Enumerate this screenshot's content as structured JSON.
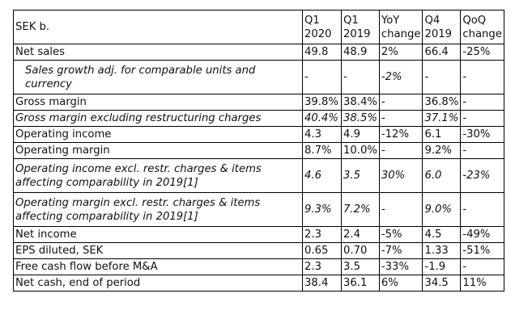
{
  "header": {
    "label": "SEK b.",
    "cols": [
      "Q1\n2020",
      "Q1\n2019",
      "YoY\nchange",
      "Q4\n2019",
      "QoQ\nchange"
    ]
  },
  "rows": [
    {
      "label": "Net sales",
      "italic": false,
      "indent": false,
      "tall": false,
      "cells": [
        "49.8",
        "48.9",
        "2%",
        "66.4",
        "-25%"
      ]
    },
    {
      "label": "Sales growth adj. for comparable units and currency",
      "italic": true,
      "indent": true,
      "tall": true,
      "cells": [
        "-",
        "-",
        "-2%",
        "-",
        "-"
      ]
    },
    {
      "label": "Gross margin",
      "italic": false,
      "indent": false,
      "tall": false,
      "cells": [
        "39.8%",
        "38.4%",
        "-",
        "36.8%",
        "-"
      ]
    },
    {
      "label": "Gross margin excluding restructuring charges",
      "italic": true,
      "indent": false,
      "tall": false,
      "cells": [
        "40.4%",
        "38.5%",
        "-",
        "37.1%",
        "-"
      ]
    },
    {
      "label": "Operating income",
      "italic": false,
      "indent": false,
      "tall": false,
      "cells": [
        "4.3",
        "4.9",
        "-12%",
        "6.1",
        "-30%"
      ]
    },
    {
      "label": "Operating margin",
      "italic": false,
      "indent": false,
      "tall": false,
      "cells": [
        "8.7%",
        "10.0%",
        "-",
        "9.2%",
        "-"
      ]
    },
    {
      "label": "Operating income excl. restr. charges & items affecting comparability in 2019[1]",
      "italic": true,
      "indent": false,
      "tall": true,
      "cells": [
        "4.6",
        "3.5",
        "30%",
        "6.0",
        "-23%"
      ]
    },
    {
      "label": "Operating margin excl. restr. charges & items affecting comparability in 2019[1]",
      "italic": true,
      "indent": false,
      "tall": true,
      "cells": [
        "9.3%",
        "7.2%",
        "-",
        "9.0%",
        "-"
      ]
    },
    {
      "label": "Net income",
      "italic": false,
      "indent": false,
      "tall": false,
      "cells": [
        "2.3",
        "2.4",
        "-5%",
        "4.5",
        "-49%"
      ]
    },
    {
      "label": "EPS diluted, SEK",
      "italic": false,
      "indent": false,
      "tall": false,
      "cells": [
        "0.65",
        "0.70",
        "-7%",
        "1.33",
        "-51%"
      ]
    },
    {
      "label": "Free cash flow before M&A",
      "italic": false,
      "indent": false,
      "tall": false,
      "cells": [
        "2.3",
        "3.5",
        "-33%",
        "-1.9",
        "-"
      ]
    },
    {
      "label": "Net cash, end of period",
      "italic": false,
      "indent": false,
      "tall": false,
      "cells": [
        "38.4",
        "36.1",
        "6%",
        "34.5",
        "11%"
      ]
    }
  ]
}
